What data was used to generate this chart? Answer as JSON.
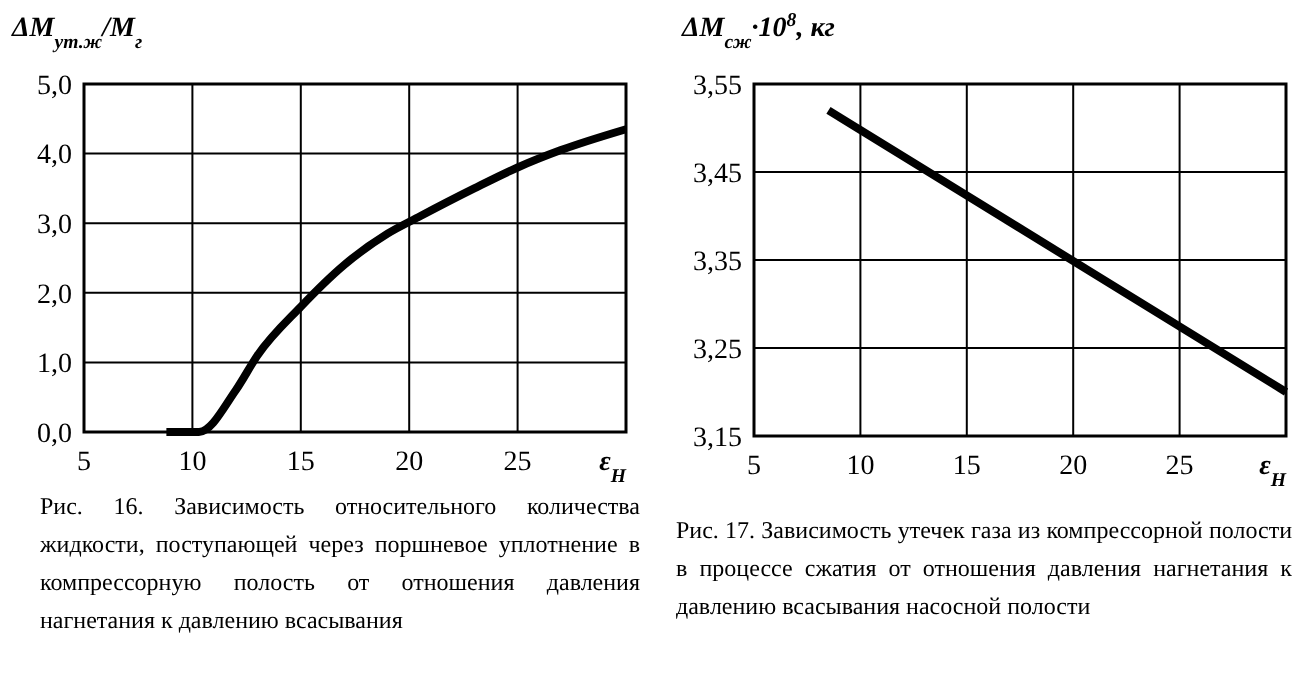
{
  "chart_data": [
    {
      "type": "line",
      "ylabel": "ΔM$_{ут.ж}$/M$_{г}$",
      "xlabel": "ε$_{Н}$",
      "xlim": [
        5,
        30
      ],
      "xticks": [
        5,
        10,
        15,
        20,
        25
      ],
      "ylim": [
        0,
        5
      ],
      "yticks": [
        {
          "value": 0,
          "label": "0,0"
        },
        {
          "value": 1,
          "label": "1,0"
        },
        {
          "value": 2,
          "label": "2,0"
        },
        {
          "value": 3,
          "label": "3,0"
        },
        {
          "value": 4,
          "label": "4,0"
        },
        {
          "value": 5,
          "label": "5,0"
        }
      ],
      "grid": true,
      "x": [
        8.8,
        10.3,
        12,
        13,
        15,
        17,
        19,
        20.5,
        23,
        25,
        27,
        30
      ],
      "series": [
        {
          "color": "#000000",
          "values": [
            0,
            0,
            0.6,
            1.1,
            1.8,
            2.4,
            2.85,
            3.1,
            3.5,
            3.8,
            4.05,
            4.35
          ]
        }
      ],
      "annotations": [
        "Рис. 16. Зависимость относительного количества жидкости, поступающей через поршневое уплотнение в компрессорную полость от отношения давления нагнетания к давлению всасывания"
      ]
    },
    {
      "type": "line",
      "ylabel": "ΔM$_{сж}$·10$^{8}$, кг",
      "xlabel": "ε$_{Н}$",
      "xlim": [
        5,
        30
      ],
      "xticks": [
        5,
        10,
        15,
        20,
        25
      ],
      "ylim": [
        3.15,
        3.55
      ],
      "yticks": [
        {
          "value": 3.15,
          "label": "3,15"
        },
        {
          "value": 3.25,
          "label": "3,25"
        },
        {
          "value": 3.35,
          "label": "3,35"
        },
        {
          "value": 3.45,
          "label": "3,45"
        },
        {
          "value": 3.55,
          "label": "3,55"
        }
      ],
      "grid": true,
      "x": [
        8.5,
        30
      ],
      "series": [
        {
          "color": "#000000",
          "values": [
            3.52,
            3.2
          ]
        }
      ],
      "annotations": [
        "Рис. 17. Зависимость утечек газа из компрессорной полости в процессе сжатия от отношения давления нагнетания к давлению всасывания насосной полости"
      ]
    }
  ]
}
